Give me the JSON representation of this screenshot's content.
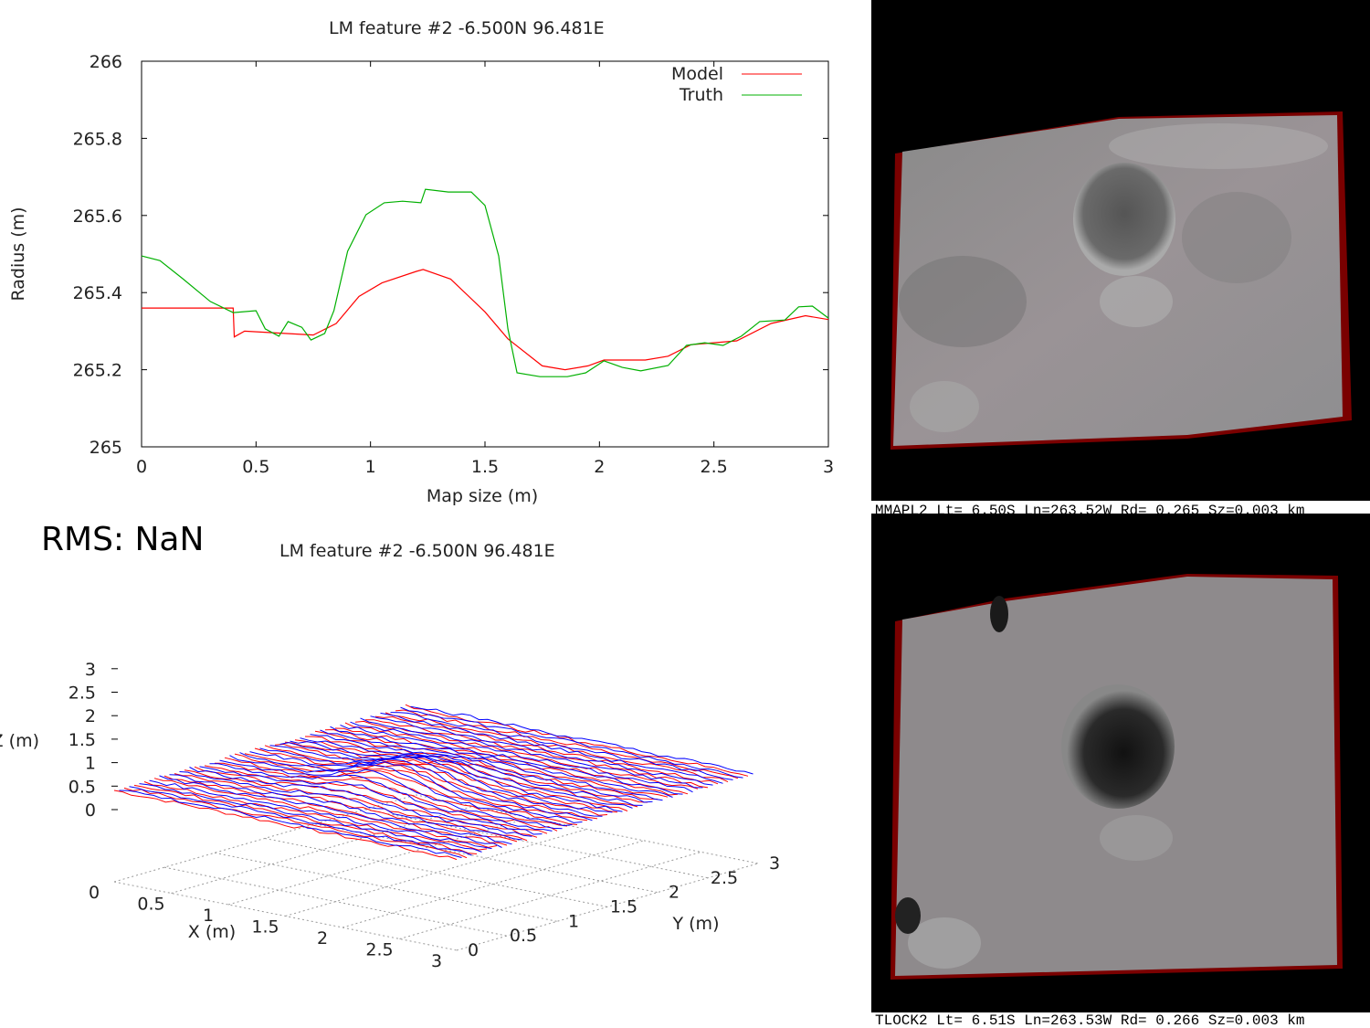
{
  "rms_label": "RMS: NaN",
  "chart_data": [
    {
      "type": "line",
      "title": "LM feature #2 -6.500N 96.481E",
      "xlabel": "Map size (m)",
      "ylabel": "Radius (m)",
      "xlim": [
        0,
        3
      ],
      "ylim": [
        265,
        266
      ],
      "xticks": [
        {
          "v": 0,
          "label": "0"
        },
        {
          "v": 0.5,
          "label": "0.5"
        },
        {
          "v": 1,
          "label": "1"
        },
        {
          "v": 1.5,
          "label": "1.5"
        },
        {
          "v": 2,
          "label": "2"
        },
        {
          "v": 2.5,
          "label": "2.5"
        },
        {
          "v": 3,
          "label": "3"
        }
      ],
      "yticks": [
        {
          "v": 265,
          "label": "265"
        },
        {
          "v": 265.2,
          "label": "265.2"
        },
        {
          "v": 265.4,
          "label": "265.4"
        },
        {
          "v": 265.6,
          "label": "265.6"
        },
        {
          "v": 265.8,
          "label": "265.8"
        },
        {
          "v": 266,
          "label": "266"
        }
      ],
      "legend": "top-right",
      "grid": false,
      "series": [
        {
          "name": "Model",
          "color": "#ff0000",
          "x": [
            0,
            0.4,
            0.405,
            0.45,
            0.6,
            0.75,
            0.85,
            0.95,
            1.05,
            1.2,
            1.23,
            1.35,
            1.5,
            1.6,
            1.75,
            1.85,
            1.95,
            2.02,
            2.2,
            2.3,
            2.4,
            2.6,
            2.75,
            2.9,
            3.0
          ],
          "y": [
            265.36,
            265.36,
            265.285,
            265.3,
            265.295,
            265.29,
            265.32,
            265.39,
            265.425,
            265.455,
            265.46,
            265.435,
            265.35,
            265.28,
            265.21,
            265.2,
            265.21,
            265.225,
            265.225,
            265.235,
            265.265,
            265.275,
            265.32,
            265.34,
            265.33
          ]
        },
        {
          "name": "Truth",
          "color": "#00b000",
          "x": [
            0,
            0.08,
            0.18,
            0.3,
            0.4,
            0.5,
            0.54,
            0.6,
            0.64,
            0.7,
            0.74,
            0.8,
            0.84,
            0.9,
            0.98,
            1.06,
            1.14,
            1.22,
            1.24,
            1.34,
            1.44,
            1.5,
            1.56,
            1.6,
            1.64,
            1.74,
            1.86,
            1.94,
            2.02,
            2.1,
            2.18,
            2.3,
            2.38,
            2.46,
            2.54,
            2.62,
            2.7,
            2.81,
            2.87,
            2.93,
            3.0
          ],
          "y": [
            265.495,
            265.483,
            265.436,
            265.377,
            265.348,
            265.353,
            265.306,
            265.287,
            265.325,
            265.31,
            265.277,
            265.294,
            265.353,
            265.507,
            265.602,
            265.633,
            265.637,
            265.633,
            265.668,
            265.661,
            265.661,
            265.626,
            265.495,
            265.306,
            265.192,
            265.182,
            265.182,
            265.192,
            265.223,
            265.206,
            265.197,
            265.211,
            265.263,
            265.27,
            265.263,
            265.287,
            265.325,
            265.329,
            265.363,
            265.365,
            265.334
          ]
        }
      ]
    },
    {
      "type": "surface3d",
      "title": "LM feature #2 -6.500N 96.481E",
      "xlabel": "X (m)",
      "ylabel": "Y (m)",
      "zlabel": "Z (m)",
      "xticks": [
        "0",
        "0.5",
        "1",
        "1.5",
        "2",
        "2.5",
        "3"
      ],
      "yticks": [
        "0",
        "0.5",
        "1",
        "1.5",
        "2",
        "2.5",
        "3"
      ],
      "zticks": [
        "0",
        "0.5",
        "1",
        "1.5",
        "2",
        "2.5",
        "3"
      ],
      "series": [
        {
          "name": "Model",
          "color": "#ff0000"
        },
        {
          "name": "Truth",
          "color": "#0000ff"
        }
      ]
    }
  ],
  "images": {
    "top_caption": "MMAPL2 Lt= 6.50S Ln=263.52W Rd= 0.265 Sz=0.003 km",
    "bottom_caption": "TLOCK2 Lt= 6.51S Ln=263.53W Rd= 0.266 Sz=0.003 km"
  }
}
